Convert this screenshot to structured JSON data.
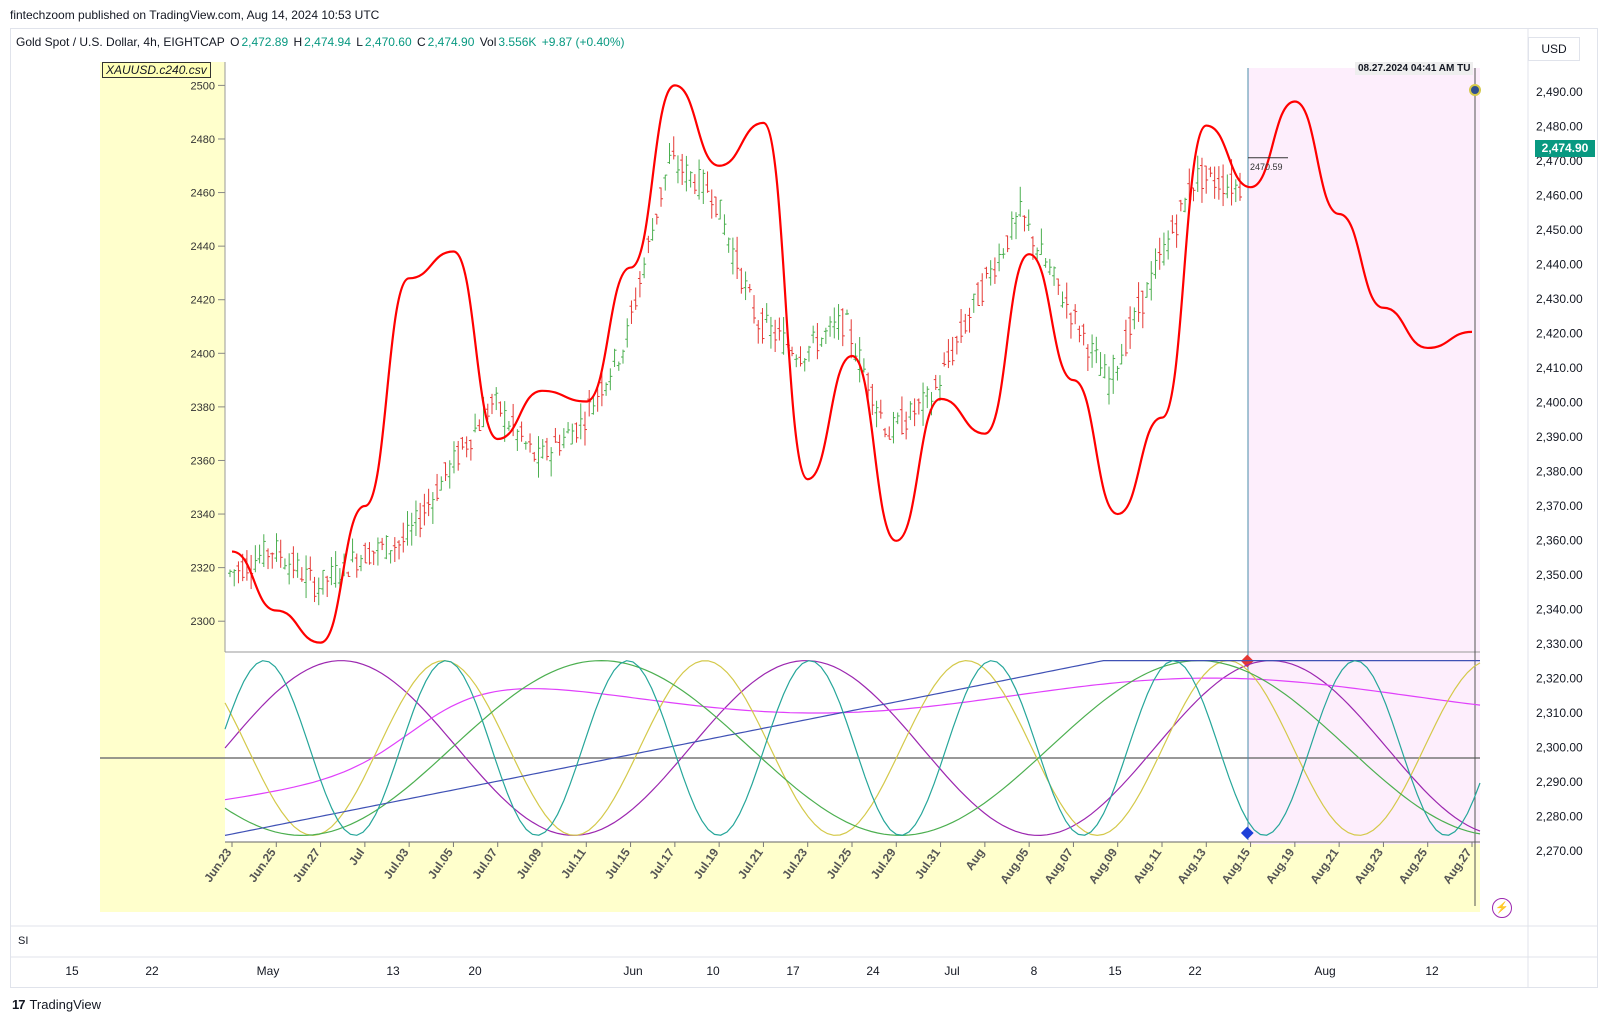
{
  "header": {
    "attribution": "fintechzoom published on TradingView.com, Aug 14, 2024 10:53 UTC"
  },
  "legend": {
    "symbol": "Gold Spot / U.S. Dollar, 4h, EIGHTCAP",
    "o_label": "O",
    "o": "2,472.89",
    "h_label": "H",
    "h": "2,474.94",
    "l_label": "L",
    "l": "2,470.60",
    "c_label": "C",
    "c": "2,474.90",
    "vol_label": "Vol",
    "vol": "3.556K",
    "change": "+9.87 (+0.40%)"
  },
  "currency": "USD",
  "last_price": "2,474.90",
  "inner_chart": {
    "file_label": "XAUUSD.c240.csv",
    "date_box": "08.27.2024  04:41 AM TU",
    "marker_value": "2470.59",
    "y_ticks": [
      "2500",
      "2480",
      "2460",
      "2440",
      "2420",
      "2400",
      "2380",
      "2360",
      "2340",
      "2320",
      "2300"
    ],
    "x_ticks": [
      "Jun.23",
      "Jun.25",
      "Jun.27",
      "Jul",
      "Jul.03",
      "Jul.05",
      "Jul.07",
      "Jul.09",
      "Jul.11",
      "Jul.15",
      "Jul.17",
      "Jul.19",
      "Jul.21",
      "Jul.23",
      "Jul.25",
      "Jul.29",
      "Jul.31",
      "Aug",
      "Aug.05",
      "Aug.07",
      "Aug.09",
      "Aug.11",
      "Aug.13",
      "Aug.15",
      "Aug.19",
      "Aug.21",
      "Aug.23",
      "Aug.25",
      "Aug.27"
    ]
  },
  "right_axis": {
    "ticks": [
      "2,490.00",
      "2,480.00",
      "2,470.00",
      "2,460.00",
      "2,450.00",
      "2,440.00",
      "2,430.00",
      "2,420.00",
      "2,410.00",
      "2,400.00",
      "2,390.00",
      "2,380.00",
      "2,370.00",
      "2,360.00",
      "2,350.00",
      "2,340.00",
      "2,330.00",
      "2,320.00",
      "2,310.00",
      "2,300.00",
      "2,290.00",
      "2,280.00",
      "2,270.00"
    ]
  },
  "bottom_axis": {
    "ticks": [
      "15",
      "22",
      "May",
      "13",
      "20",
      "Jun",
      "10",
      "17",
      "24",
      "Jul",
      "8",
      "15",
      "22",
      "Aug",
      "12"
    ]
  },
  "pane_label": "SI",
  "footer": {
    "logo": "17",
    "brand": "TradingView"
  },
  "colors": {
    "bull": "#4caf50",
    "bear": "#e53935",
    "forecast": "#ff0000",
    "projection_bg": "#fdeefc",
    "paper_bg": "#ffffcc",
    "accent": "#089981"
  },
  "chart_data": {
    "type": "line",
    "title": "XAUUSD.c240.csv",
    "xlabel": "",
    "ylabel": "",
    "ylim": [
      2290,
      2505
    ],
    "x": [
      "Jun.23",
      "Jun.25",
      "Jun.27",
      "Jul",
      "Jul.03",
      "Jul.05",
      "Jul.07",
      "Jul.09",
      "Jul.11",
      "Jul.15",
      "Jul.17",
      "Jul.19",
      "Jul.21",
      "Jul.23",
      "Jul.25",
      "Jul.29",
      "Jul.31",
      "Aug",
      "Aug.05",
      "Aug.07",
      "Aug.09",
      "Aug.11",
      "Aug.13",
      "Aug.15",
      "Aug.19",
      "Aug.21",
      "Aug.23",
      "Aug.25",
      "Aug.27"
    ],
    "series": [
      {
        "color": "#ff0000",
        "values": [
          2326,
          2304,
          2292,
          2343,
          2428,
          2438,
          2368,
          2386,
          2382,
          2432,
          2500,
          2470,
          2486,
          2353,
          2399,
          2330,
          2383,
          2370,
          2437,
          2390,
          2340,
          2376,
          2485,
          2462,
          2494,
          2452,
          2417,
          2402,
          2408
        ]
      }
    ],
    "price_bars": [
      2318,
      2327,
      2313,
      2325,
      2330,
      2357,
      2382,
      2360,
      2374,
      2404,
      2472,
      2460,
      2412,
      2400,
      2412,
      2370,
      2384,
      2420,
      2452,
      2420,
      2389,
      2428,
      2466,
      2462
    ],
    "oscillators": [
      "#9c27b0",
      "#e040fb",
      "#d4c94a",
      "#4caf50",
      "#3f51b5",
      "#26a69a"
    ],
    "grid": false,
    "legend": "none"
  }
}
